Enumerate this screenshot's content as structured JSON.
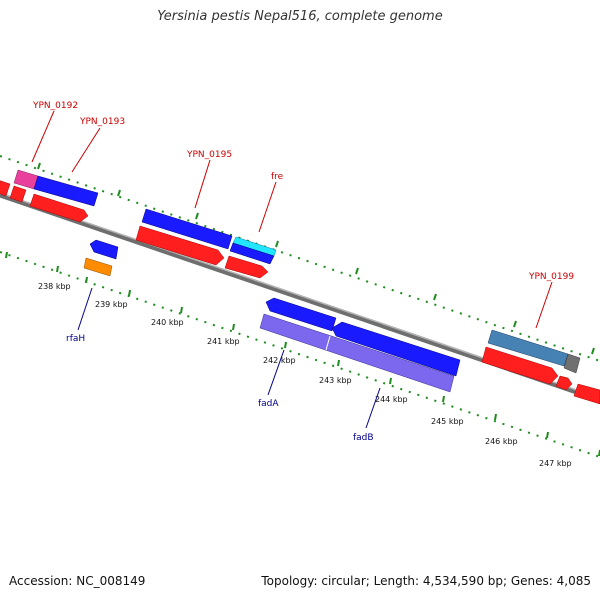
{
  "title": "Yersinia pestis Nepal516, complete genome",
  "footer": {
    "accession": "Accession: NC_008149",
    "topology": "Topology: circular; Length: 4,534,590 bp; Genes: 4,085"
  },
  "colors": {
    "backbone": "#808080",
    "tick": "#1e8c1e",
    "label_red": "#cc0000",
    "label_blue": "#00008b"
  },
  "ticks": [
    "238 kbp",
    "239 kbp",
    "240 kbp",
    "241 kbp",
    "242 kbp",
    "243 kbp",
    "244 kbp",
    "245 kbp",
    "246 kbp",
    "247 kbp"
  ],
  "labels": {
    "forward": [
      "YPN_0192",
      "YPN_0193",
      "YPN_0195",
      "fre",
      "YPN_0199"
    ],
    "reverse": [
      "rfaH",
      "fadA",
      "fadB"
    ]
  }
}
